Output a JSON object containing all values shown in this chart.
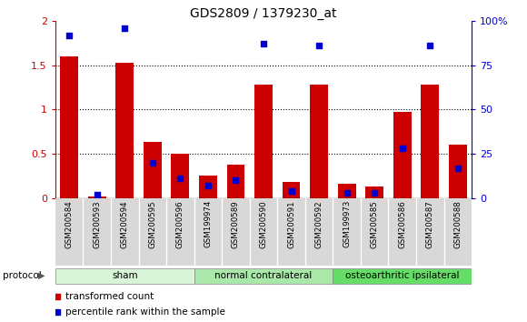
{
  "title": "GDS2809 / 1379230_at",
  "samples": [
    "GSM200584",
    "GSM200593",
    "GSM200594",
    "GSM200595",
    "GSM200596",
    "GSM199974",
    "GSM200589",
    "GSM200590",
    "GSM200591",
    "GSM200592",
    "GSM199973",
    "GSM200585",
    "GSM200586",
    "GSM200587",
    "GSM200588"
  ],
  "red_values": [
    1.6,
    0.02,
    1.53,
    0.63,
    0.5,
    0.25,
    0.38,
    1.28,
    0.18,
    1.28,
    0.16,
    0.13,
    0.97,
    1.28,
    0.6
  ],
  "blue_pct": [
    92,
    2,
    96,
    20,
    11,
    7,
    10,
    87,
    4,
    86,
    3,
    3,
    28,
    86,
    17
  ],
  "groups": [
    {
      "label": "sham",
      "start": 0,
      "end": 5,
      "color": "#d8f5d8"
    },
    {
      "label": "normal contralateral",
      "start": 5,
      "end": 10,
      "color": "#aae8aa"
    },
    {
      "label": "osteoarthritic ipsilateral",
      "start": 10,
      "end": 15,
      "color": "#66dd66"
    }
  ],
  "ylim_left": [
    0,
    2
  ],
  "ylim_right": [
    0,
    100
  ],
  "yticks_left": [
    0,
    0.5,
    1.0,
    1.5,
    2.0
  ],
  "ytick_labels_left": [
    "0",
    "0.5",
    "1",
    "1.5",
    "2"
  ],
  "yticks_right": [
    0,
    25,
    50,
    75,
    100
  ],
  "ytick_labels_right": [
    "0",
    "25",
    "50",
    "75",
    "100%"
  ],
  "red_color": "#cc0000",
  "blue_color": "#0000cc",
  "bar_width": 0.65,
  "bg_color": "#d8d8d8",
  "protocol_label": "protocol"
}
